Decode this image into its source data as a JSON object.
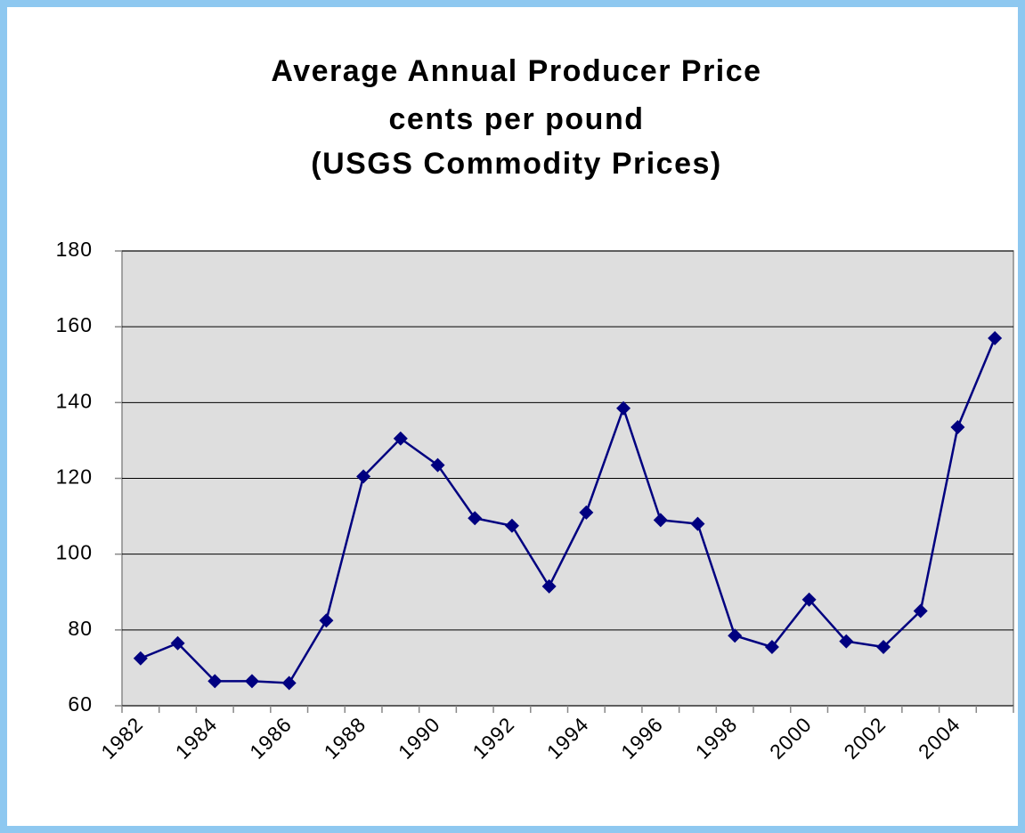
{
  "chart_data": {
    "type": "line",
    "title": [
      "Average Annual Producer Price",
      "cents per pound",
      "(USGS Commodity Prices)"
    ],
    "categories": [
      "1982",
      null,
      "1984",
      null,
      "1986",
      null,
      "1988",
      null,
      "1990",
      null,
      "1992",
      null,
      "1994",
      null,
      "1996",
      null,
      "1998",
      null,
      "2000",
      null,
      "2002",
      null,
      "2004",
      null
    ],
    "series": [
      {
        "color": "#000080",
        "values": [
          72.5,
          76.5,
          66.5,
          66.5,
          66,
          82.5,
          120.5,
          130.5,
          123.5,
          109.5,
          107.5,
          91.5,
          111,
          138.5,
          109,
          108,
          78.5,
          75.5,
          88,
          77,
          75.5,
          85,
          133.5,
          157
        ]
      }
    ],
    "ylim": [
      60,
      180
    ],
    "yticks": [
      60,
      80,
      100,
      120,
      140,
      160,
      180
    ],
    "grid": true
  }
}
